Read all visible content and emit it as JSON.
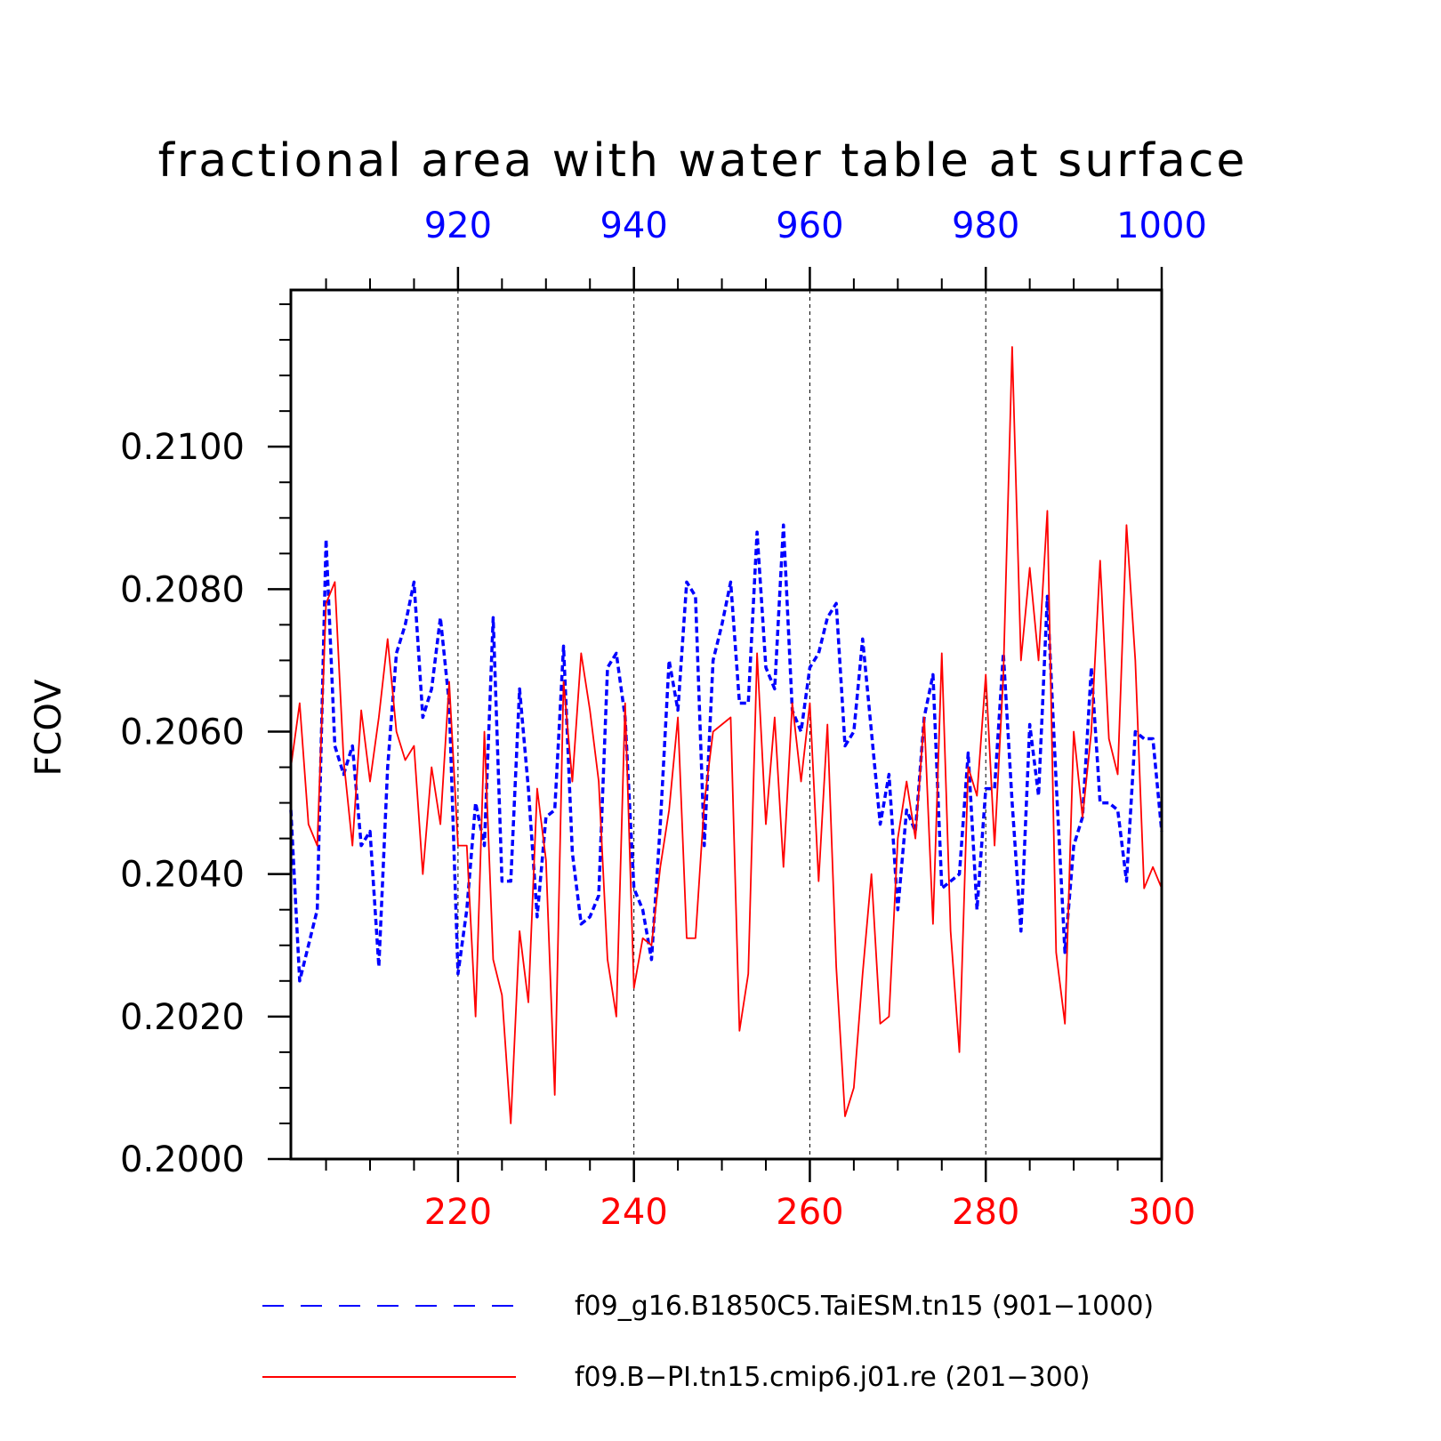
{
  "chart_data": {
    "type": "line",
    "title": "fractional area with water table at surface",
    "ylabel": "FCOV",
    "ylim": [
      0.2,
      0.2122
    ],
    "yticks": [
      "0.2000",
      "0.2020",
      "0.2040",
      "0.2060",
      "0.2080",
      "0.2100"
    ],
    "ytick_values": [
      0.2,
      0.202,
      0.204,
      0.206,
      0.208,
      0.21
    ],
    "grid_x_dashed": true,
    "x_bottom": {
      "range": [
        201,
        300
      ],
      "ticks": [
        220,
        240,
        260,
        280,
        300
      ],
      "tick_labels": [
        "220",
        "240",
        "260",
        "280",
        "300"
      ],
      "color": "#ff0000"
    },
    "x_top": {
      "range": [
        901,
        1000
      ],
      "ticks": [
        920,
        940,
        960,
        980,
        1000
      ],
      "tick_labels": [
        "920",
        "940",
        "960",
        "980",
        "1000"
      ],
      "color": "#0000ff"
    },
    "series": [
      {
        "name": "f09_g16.B1850C5.TaiESM.tn15 (901−1000)",
        "color": "#0000ff",
        "style": "dashed",
        "axis": "top",
        "x_start": 901,
        "values": [
          0.2049,
          0.2025,
          0.203,
          0.2035,
          0.2087,
          0.2058,
          0.2054,
          0.2058,
          0.2044,
          0.2046,
          0.2027,
          0.2055,
          0.2071,
          0.2075,
          0.2081,
          0.2062,
          0.2066,
          0.2076,
          0.2064,
          0.2026,
          0.2035,
          0.205,
          0.2044,
          0.2076,
          0.2039,
          0.2039,
          0.2066,
          0.2052,
          0.2034,
          0.2048,
          0.2049,
          0.2072,
          0.2043,
          0.2033,
          0.2034,
          0.2037,
          0.2069,
          0.2071,
          0.2062,
          0.2038,
          0.2035,
          0.2028,
          0.2047,
          0.207,
          0.2063,
          0.2081,
          0.2079,
          0.2044,
          0.207,
          0.2075,
          0.2081,
          0.2064,
          0.2064,
          0.2088,
          0.2069,
          0.2066,
          0.2089,
          0.2063,
          0.206,
          0.2069,
          0.2071,
          0.2076,
          0.2078,
          0.2058,
          0.206,
          0.2073,
          0.206,
          0.2047,
          0.2054,
          0.2035,
          0.2049,
          0.2046,
          0.2062,
          0.2068,
          0.2038,
          0.2039,
          0.204,
          0.2057,
          0.2035,
          0.2052,
          0.2052,
          0.2071,
          0.205,
          0.2032,
          0.2061,
          0.2051,
          0.2079,
          0.2053,
          0.2029,
          0.2044,
          0.2048,
          0.2069,
          0.205,
          0.205,
          0.2049,
          0.2039,
          0.206,
          0.2059,
          0.2059,
          0.2046
        ]
      },
      {
        "name": "f09.B−PI.tn15.cmip6.j01.re (201−300)",
        "color": "#ff0000",
        "style": "solid",
        "axis": "bottom",
        "x_start": 201,
        "values": [
          0.2055,
          0.2064,
          0.2047,
          0.2044,
          0.2078,
          0.2081,
          0.2056,
          0.2044,
          0.2063,
          0.2053,
          0.2062,
          0.2073,
          0.206,
          0.2056,
          0.2058,
          0.204,
          0.2055,
          0.2047,
          0.2067,
          0.2044,
          0.2044,
          0.202,
          0.206,
          0.2028,
          0.2023,
          0.2005,
          0.2032,
          0.2022,
          0.2052,
          0.2042,
          0.2009,
          0.2067,
          0.2053,
          0.2071,
          0.2063,
          0.2053,
          0.2028,
          0.202,
          0.2064,
          0.2024,
          0.2031,
          0.203,
          0.2041,
          0.2049,
          0.2062,
          0.2031,
          0.2031,
          0.205,
          0.206,
          0.2061,
          0.2062,
          0.2018,
          0.2026,
          0.2071,
          0.2047,
          0.2062,
          0.2041,
          0.2064,
          0.2053,
          0.2064,
          0.2039,
          0.2061,
          0.2027,
          0.2006,
          0.201,
          0.2026,
          0.204,
          0.2019,
          0.202,
          0.2045,
          0.2053,
          0.2045,
          0.2062,
          0.2033,
          0.2071,
          0.2032,
          0.2015,
          0.2055,
          0.2051,
          0.2068,
          0.2044,
          0.2068,
          0.2114,
          0.207,
          0.2083,
          0.207,
          0.2091,
          0.2029,
          0.2019,
          0.206,
          0.2048,
          0.206,
          0.2084,
          0.2059,
          0.2054,
          0.2089,
          0.207,
          0.2038,
          0.2041,
          0.2038
        ]
      }
    ]
  }
}
